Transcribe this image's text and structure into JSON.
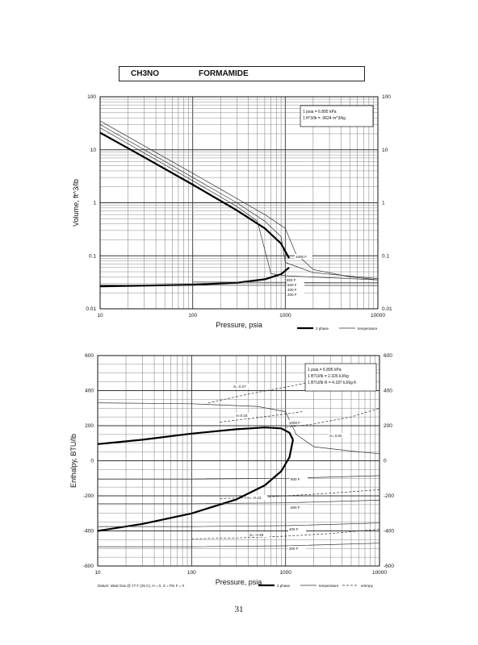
{
  "header": {
    "formula": "CH3NO",
    "name": "FORMAMIDE"
  },
  "page_number": "31",
  "chart_data": [
    {
      "type": "line",
      "xlabel": "Pressure,  psia",
      "ylabel": "Volume, ft^3/lb",
      "xscale": "log",
      "yscale": "log",
      "xlim": [
        10,
        10000
      ],
      "ylim": [
        0.01,
        100
      ],
      "x_ticks": [
        "10",
        "100",
        "1000",
        "10000"
      ],
      "y_ticks": [
        "0.01",
        "0.1",
        "1",
        "10",
        "100"
      ],
      "right_y_ticks": [
        "0.01",
        "0.1",
        "1",
        "10",
        "100"
      ],
      "grid": true,
      "conversions": [
        "1 psia  =  6.895 kPa",
        "1 ft^3/lb  =  .0624 m^3/kg"
      ],
      "legend": {
        "position": "bottom-right",
        "items": [
          "2 phase",
          "temperature"
        ]
      },
      "isotherm_labels": [
        "1000 F",
        "800 F",
        "600 F",
        "400 F",
        "200 F"
      ],
      "series": [
        {
          "name": "2 phase",
          "role": "saturated-vapor",
          "x": [
            10,
            30,
            100,
            300,
            600,
            900,
            1100
          ],
          "y": [
            21,
            7.2,
            2.2,
            0.72,
            0.33,
            0.17,
            0.09
          ]
        },
        {
          "name": "2 phase",
          "role": "saturated-liquid",
          "x": [
            10,
            100,
            300,
            600,
            900,
            1100
          ],
          "y": [
            0.0265,
            0.0285,
            0.031,
            0.036,
            0.045,
            0.06
          ]
        },
        {
          "name": "temperature",
          "label": "1000 F",
          "x": [
            10,
            100,
            300,
            600,
            1000,
            1300,
            2000,
            5000,
            10000
          ],
          "y": [
            35,
            3.6,
            1.2,
            0.6,
            0.33,
            0.11,
            0.055,
            0.04,
            0.035
          ]
        },
        {
          "name": "temperature",
          "label": "800 F",
          "x": [
            10,
            100,
            300,
            600,
            900,
            1000,
            2000,
            10000
          ],
          "y": [
            30,
            3.0,
            1.0,
            0.45,
            0.23,
            0.075,
            0.048,
            0.037
          ]
        },
        {
          "name": "temperature",
          "label": "600 F",
          "x": [
            10,
            100,
            300,
            500,
            700,
            1000,
            10000
          ],
          "y": [
            26,
            2.6,
            0.85,
            0.45,
            0.046,
            0.042,
            0.035
          ]
        },
        {
          "name": "temperature",
          "label": "400 F",
          "x": [
            100,
            10000
          ],
          "y": [
            0.032,
            0.031
          ]
        },
        {
          "name": "temperature",
          "label": "200 F",
          "x": [
            10,
            10000
          ],
          "y": [
            0.028,
            0.0275
          ]
        }
      ]
    },
    {
      "type": "line",
      "xlabel": "Pressure,  psia",
      "ylabel": "Enthalpy, BTU/lb",
      "xscale": "log",
      "xlim": [
        10,
        10000
      ],
      "ylim": [
        -600,
        600
      ],
      "x_ticks": [
        "10",
        "100",
        "1000",
        "10000"
      ],
      "y_ticks": [
        "-600",
        "-400",
        "-200",
        "0",
        "200",
        "400",
        "600"
      ],
      "right_y_ticks": [
        "-600",
        "-400",
        "-200",
        "0",
        "200",
        "400",
        "600"
      ],
      "grid": true,
      "conversions": [
        "1 psia  =  6.895 kPa",
        "1 BTU/lb  =  2.326 kJ/kg",
        "1 BTU/lb R  =  4.187 kJ/kg K"
      ],
      "legend": {
        "position": "bottom-right",
        "items": [
          "2 phase",
          "temperature",
          "entropy"
        ]
      },
      "footnote": "Datum: Ideal Gas @ 77 F (25 C),  H = 0,  S = Pin F = 0",
      "isotherm_labels": [
        "1000 F",
        "800 F",
        "600 F",
        "400 F",
        "200 F"
      ],
      "entropy_labels": [
        "S= 0.27",
        "S=0.16",
        "S= 0.02",
        "S= -0.23",
        "S= -0.49"
      ],
      "series": [
        {
          "name": "2 phase",
          "role": "saturated-vapor",
          "x": [
            10,
            30,
            100,
            300,
            600,
            900,
            1100,
            1200
          ],
          "y": [
            95,
            120,
            155,
            180,
            190,
            185,
            160,
            120
          ]
        },
        {
          "name": "2 phase",
          "role": "saturated-liquid",
          "x": [
            10,
            30,
            100,
            300,
            600,
            900,
            1100,
            1200
          ],
          "y": [
            -400,
            -360,
            -300,
            -220,
            -140,
            -60,
            20,
            120
          ]
        },
        {
          "name": "temperature",
          "label": "1000 F",
          "x": [
            10,
            100,
            500,
            1000,
            1300,
            2000,
            5000,
            10000
          ],
          "y": [
            330,
            325,
            310,
            280,
            150,
            80,
            55,
            40
          ]
        },
        {
          "name": "temperature",
          "label": "800 F",
          "x": [
            10,
            100,
            1000,
            10000
          ],
          "y": [
            -105,
            -105,
            -100,
            -85
          ]
        },
        {
          "name": "temperature",
          "label": "600 F",
          "x": [
            10,
            100,
            1000,
            10000
          ],
          "y": [
            -245,
            -245,
            -240,
            -225
          ]
        },
        {
          "name": "temperature",
          "label": "400 F",
          "x": [
            10,
            100,
            1000,
            10000
          ],
          "y": [
            -375,
            -375,
            -370,
            -355
          ]
        },
        {
          "name": "temperature",
          "label": "200 F",
          "x": [
            10,
            100,
            1000,
            10000
          ],
          "y": [
            -490,
            -490,
            -485,
            -470
          ]
        },
        {
          "name": "entropy",
          "label": "S= 0.27",
          "x": [
            150,
            400,
            1000,
            3000,
            10000
          ],
          "y": [
            330,
            380,
            420,
            470,
            520
          ]
        },
        {
          "name": "entropy",
          "label": "S=0.16",
          "x": [
            200,
            400,
            800,
            1500
          ],
          "y": [
            220,
            240,
            260,
            280
          ]
        },
        {
          "name": "entropy",
          "label": "S= 0.02",
          "x": [
            1000,
            2000,
            5000,
            10000
          ],
          "y": [
            190,
            210,
            250,
            300
          ]
        },
        {
          "name": "entropy",
          "label": "S= -0.23",
          "x": [
            200,
            500,
            1000,
            3000,
            10000
          ],
          "y": [
            -215,
            -210,
            -200,
            -185,
            -165
          ]
        },
        {
          "name": "entropy",
          "label": "S= -0.49",
          "x": [
            100,
            300,
            1000,
            3000,
            10000
          ],
          "y": [
            -445,
            -440,
            -430,
            -415,
            -390
          ]
        }
      ]
    }
  ]
}
